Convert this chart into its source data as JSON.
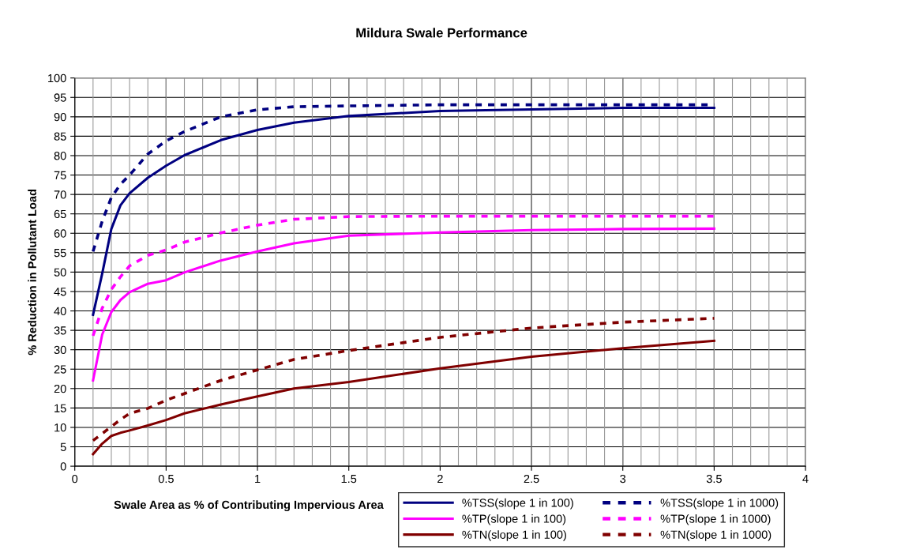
{
  "chart_data": {
    "type": "line",
    "title": "Mildura Swale Performance",
    "xlabel": "Swale Area as % of Contributing Impervious Area",
    "ylabel": "% Reduction in Pollutant Load",
    "xlim": [
      0,
      4
    ],
    "xticks": [
      0,
      0.5,
      1,
      1.5,
      2,
      2.5,
      3,
      3.5,
      4
    ],
    "ylim": [
      0,
      100
    ],
    "yticks": [
      0,
      5,
      10,
      15,
      20,
      25,
      30,
      35,
      40,
      45,
      50,
      55,
      60,
      65,
      70,
      75,
      80,
      85,
      90,
      95,
      100
    ],
    "grid": true,
    "legend": "bottom right",
    "marker": "none",
    "x": [
      0.1,
      0.15,
      0.2,
      0.25,
      0.3,
      0.4,
      0.5,
      0.6,
      0.8,
      1.0,
      1.2,
      1.5,
      2.0,
      2.5,
      3.0,
      3.5
    ],
    "series": [
      {
        "name": "%TSS(slope 1 in 100)",
        "color": "#000080",
        "line_style": "solid",
        "values": [
          39.0,
          49.6,
          61.1,
          67.2,
          70.3,
          74.3,
          77.4,
          80.1,
          84.0,
          86.6,
          88.5,
          90.2,
          91.5,
          91.9,
          92.3,
          92.3
        ]
      },
      {
        "name": "%TP(slope 1 in 100)",
        "color": "#ff00ff",
        "line_style": "solid",
        "values": [
          22.1,
          33.9,
          39.7,
          42.8,
          44.8,
          47.0,
          47.9,
          49.9,
          53.0,
          55.3,
          57.4,
          59.4,
          60.2,
          60.8,
          61.1,
          61.2
        ]
      },
      {
        "name": "%TN(slope 1 in 100)",
        "color": "#800000",
        "line_style": "solid",
        "values": [
          3.1,
          5.8,
          7.8,
          8.6,
          9.2,
          10.5,
          11.9,
          13.6,
          15.9,
          18.0,
          20.0,
          21.7,
          25.2,
          28.2,
          30.4,
          32.3
        ]
      },
      {
        "name": "%TSS(slope 1 in 1000)",
        "color": "#000080",
        "line_style": "dashed",
        "values": [
          55.3,
          63.1,
          69.2,
          72.6,
          75.0,
          80.4,
          83.8,
          86.2,
          90.0,
          91.8,
          92.6,
          92.8,
          93.1,
          93.1,
          93.1,
          93.1
        ]
      },
      {
        "name": "%TP(slope 1 in 1000)",
        "color": "#ff00ff",
        "line_style": "dashed",
        "values": [
          33.6,
          40.7,
          45.5,
          48.8,
          51.6,
          54.3,
          55.7,
          57.7,
          60.1,
          62.1,
          63.6,
          64.3,
          64.4,
          64.4,
          64.4,
          64.4
        ]
      },
      {
        "name": "%TN(slope 1 in 1000)",
        "color": "#800000",
        "line_style": "dashed",
        "values": [
          6.6,
          8.4,
          10.2,
          12.0,
          13.6,
          14.9,
          17.0,
          18.7,
          22.1,
          24.8,
          27.5,
          29.8,
          33.2,
          35.6,
          37.1,
          38.1
        ]
      }
    ]
  }
}
